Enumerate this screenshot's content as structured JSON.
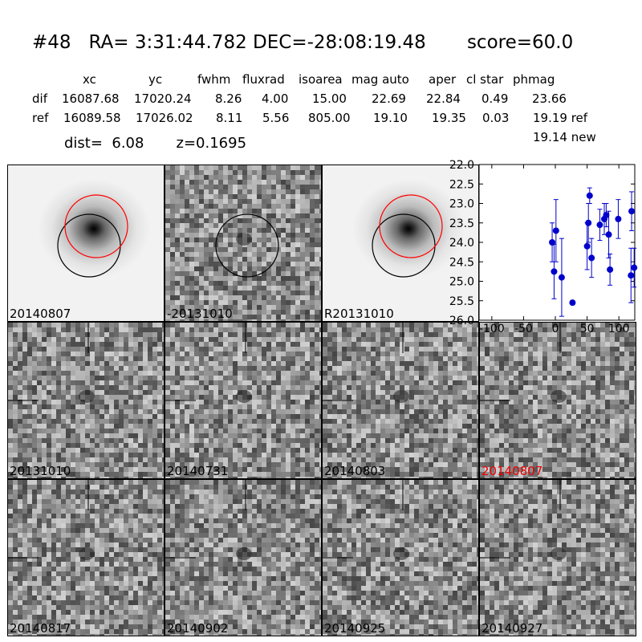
{
  "header": {
    "title": "#48   RA= 3:31:44.782 DEC=-28:08:19.48       score=60.0",
    "columns": [
      "xc",
      "yc",
      "fwhm",
      "fluxrad",
      "isoarea",
      "mag auto",
      "aper",
      "cl star",
      "phmag"
    ],
    "rows": [
      {
        "label": "dif",
        "values": [
          "16087.68",
          "17020.24",
          "8.26",
          "4.00",
          "15.00",
          "22.69",
          "22.84",
          "0.49",
          "23.66"
        ]
      },
      {
        "label": "ref",
        "values": [
          "16089.58",
          "17026.02",
          "8.11",
          "5.56",
          "805.00",
          "19.10",
          "19.35",
          "0.03",
          "19.19 ref"
        ]
      }
    ],
    "extra_phmag": "19.14 new",
    "dist_label": "dist=  6.08       z=0.1695"
  },
  "panels": [
    {
      "label": "20140807",
      "kind": "galaxy",
      "red_label": false
    },
    {
      "label": "-20131010",
      "kind": "diff",
      "red_label": false
    },
    {
      "label": "R20131010",
      "kind": "galaxy",
      "red_label": false
    },
    {
      "label": "20131010",
      "kind": "noise",
      "red_label": false
    },
    {
      "label": "20140731",
      "kind": "noise",
      "red_label": false
    },
    {
      "label": "20140803",
      "kind": "noise",
      "red_label": false
    },
    {
      "label": "20140807",
      "kind": "noise",
      "red_label": true
    },
    {
      "label": "20140817",
      "kind": "noise",
      "red_label": false
    },
    {
      "label": "20140902",
      "kind": "noise",
      "red_label": false
    },
    {
      "label": "20140925",
      "kind": "noise",
      "red_label": false
    },
    {
      "label": "20140927",
      "kind": "noise",
      "red_label": false
    }
  ],
  "colors": {
    "point": "#0000cc",
    "red_circle": "#ff0000",
    "black_circle": "#000000",
    "red_label": "#ee0000"
  },
  "chart_data": {
    "type": "scatter",
    "title": "",
    "xlabel": "",
    "ylabel": "",
    "xlim": [
      -120,
      125
    ],
    "ylim": [
      22.0,
      26.0
    ],
    "y_inverted": true,
    "xticks": [
      -100,
      -50,
      0,
      50,
      100
    ],
    "yticks": [
      22.0,
      22.5,
      23.0,
      23.5,
      24.0,
      24.5,
      25.0,
      25.5,
      26.0
    ],
    "points": [
      {
        "x": -5,
        "y": 24.0,
        "err": 0.5
      },
      {
        "x": -2,
        "y": 24.75,
        "err": 0.7
      },
      {
        "x": 1,
        "y": 23.7,
        "err": 0.8
      },
      {
        "x": 10,
        "y": 24.9,
        "err": 1.0
      },
      {
        "x": 27,
        "y": 25.55,
        "err": 0.05
      },
      {
        "x": 50,
        "y": 24.1,
        "err": 0.6
      },
      {
        "x": 52,
        "y": 23.5,
        "err": 0.5
      },
      {
        "x": 54,
        "y": 22.8,
        "err": 0.2
      },
      {
        "x": 57,
        "y": 24.4,
        "err": 0.5
      },
      {
        "x": 70,
        "y": 23.55,
        "err": 0.4
      },
      {
        "x": 77,
        "y": 23.4,
        "err": 0.4
      },
      {
        "x": 80,
        "y": 23.3,
        "err": 0.3
      },
      {
        "x": 84,
        "y": 23.8,
        "err": 0.6
      },
      {
        "x": 86,
        "y": 24.7,
        "err": 0.4
      },
      {
        "x": 99,
        "y": 23.4,
        "err": 0.5
      },
      {
        "x": 119,
        "y": 24.85,
        "err": 0.7
      },
      {
        "x": 120,
        "y": 23.2,
        "err": 0.5
      },
      {
        "x": 124,
        "y": 24.65,
        "err": 0.5
      }
    ]
  }
}
